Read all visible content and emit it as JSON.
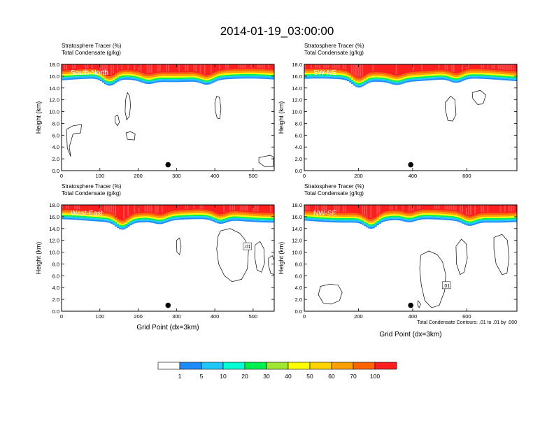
{
  "title": "2014-01-19_03:00:00",
  "colors": {
    "palette": [
      "#ffffff",
      "#1e8cff",
      "#1ec8ff",
      "#00ffd2",
      "#00f050",
      "#00dc00",
      "#a0e632",
      "#ffff00",
      "#ffd200",
      "#ffa000",
      "#ff6400",
      "#ff1e1e"
    ],
    "contour": "#000000",
    "point_marker": "#000000"
  },
  "colorbar": {
    "labels": [
      "1",
      "5",
      "10",
      "20",
      "30",
      "40",
      "50",
      "60",
      "70",
      "100"
    ]
  },
  "contour_note": "Total Condensate Contours: .01 to .01 by .000",
  "chart_data": [
    {
      "type": "heatmap",
      "panel_label": "South-North",
      "title_line1": "Stratosphere Tracer   (%)",
      "title_line2": "Total Condensate   (g/kg)",
      "ylabel": "Height (km)",
      "xlabel": "",
      "xlim": [
        0,
        555
      ],
      "ylim": [
        0,
        18
      ],
      "xticks": [
        "0",
        "100",
        "200",
        "300",
        "400",
        "500"
      ],
      "yticks": [
        "0.0",
        "2.0",
        "4.0",
        "6.0",
        "8.0",
        "10.0",
        "12.0",
        "14.0",
        "16.0",
        "18.0"
      ],
      "point_marker": {
        "x": 278,
        "y": 1.0
      },
      "contour_labels": []
    },
    {
      "type": "heatmap",
      "panel_label": "SW-NE",
      "title_line1": "Stratosphere Tracer   (%)",
      "title_line2": "Total Condensate   (g/kg)",
      "ylabel": "Height (km)",
      "xlabel": "",
      "xlim": [
        0,
        785
      ],
      "ylim": [
        0,
        18
      ],
      "xticks": [
        "0",
        "200",
        "400",
        "600"
      ],
      "yticks": [
        "0.0",
        "2.0",
        "4.0",
        "6.0",
        "8.0",
        "10.0",
        "12.0",
        "14.0",
        "16.0",
        "18.0"
      ],
      "point_marker": {
        "x": 393,
        "y": 1.0
      },
      "contour_labels": []
    },
    {
      "type": "heatmap",
      "panel_label": "West-East",
      "title_line1": "Stratosphere Tracer   (%)",
      "title_line2": "Total Condensate   (g/kg)",
      "ylabel": "Height (km)",
      "xlabel": "Grid Point (dx=3km)",
      "xlim": [
        0,
        555
      ],
      "ylim": [
        0,
        18
      ],
      "xticks": [
        "0",
        "100",
        "200",
        "300",
        "400",
        "500"
      ],
      "yticks": [
        "0.0",
        "2.0",
        "4.0",
        "6.0",
        "8.0",
        "10.0",
        "12.0",
        "14.0",
        "16.0",
        "18.0"
      ],
      "point_marker": {
        "x": 278,
        "y": 1.0
      },
      "contour_labels": [
        {
          "text": ".01",
          "x": 485,
          "y": 11.0
        }
      ]
    },
    {
      "type": "heatmap",
      "panel_label": "NW-SE",
      "title_line1": "Stratosphere Tracer   (%)",
      "title_line2": "Total Condensate   (g/kg)",
      "ylabel": "Height (km)",
      "xlabel": "Grid Point (dx=3km)",
      "xlim": [
        0,
        785
      ],
      "ylim": [
        0,
        18
      ],
      "xticks": [
        "0",
        "200",
        "400",
        "600"
      ],
      "yticks": [
        "0.0",
        "2.0",
        "4.0",
        "6.0",
        "8.0",
        "10.0",
        "12.0",
        "14.0",
        "16.0",
        "18.0"
      ],
      "point_marker": {
        "x": 393,
        "y": 1.0
      },
      "contour_labels": [
        {
          "text": ".01",
          "x": 525,
          "y": 4.4
        }
      ]
    }
  ]
}
